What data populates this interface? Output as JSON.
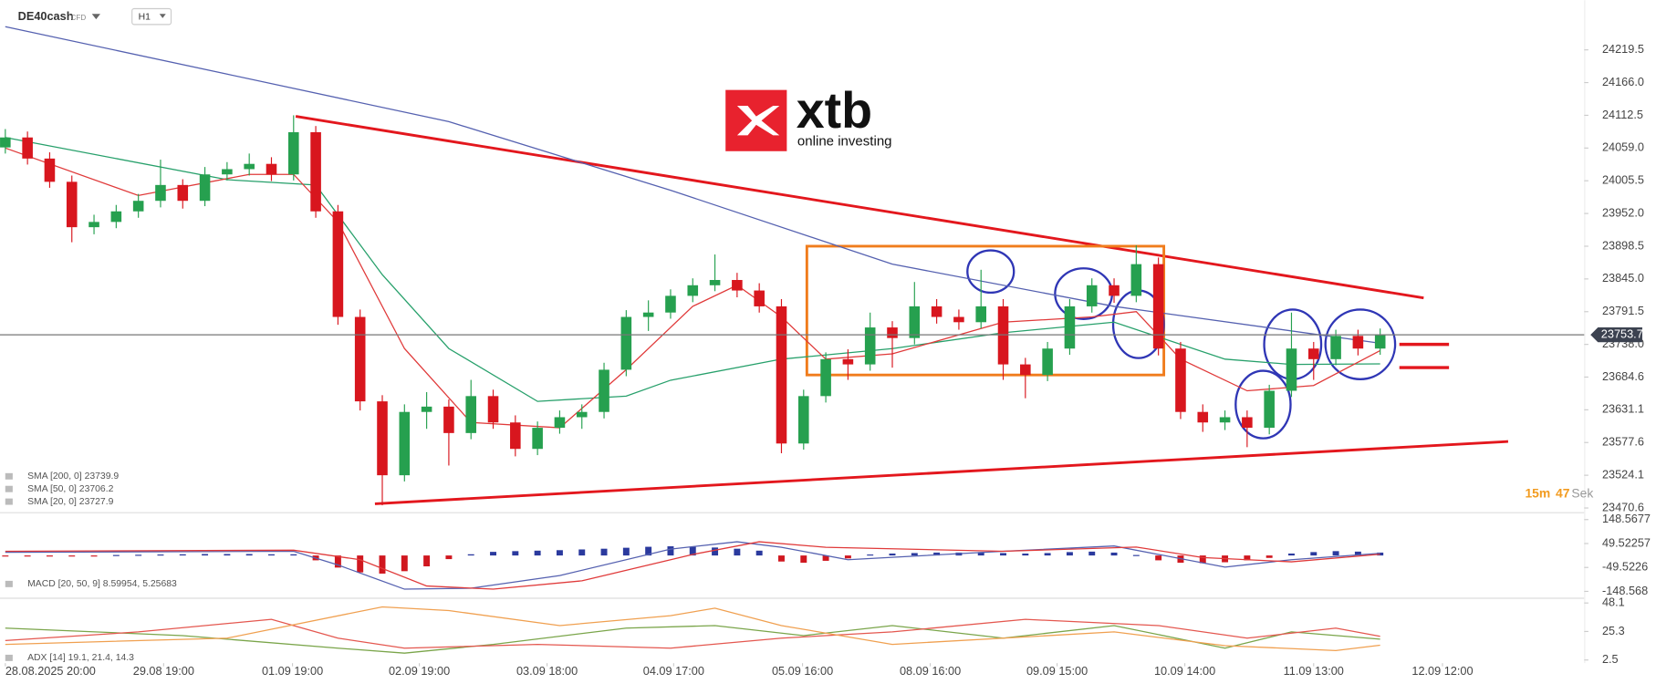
{
  "header": {
    "symbol": "DE40cash",
    "instrument": "CFD",
    "timeframe": "H1"
  },
  "logo": {
    "name": "xtb",
    "tagline": "online investing"
  },
  "timer": {
    "minutes": "15m",
    "seconds": "47",
    "unit": "Sek"
  },
  "chart_data": [
    {
      "type": "candlestick",
      "xlim": [
        -0.24,
        71.2
      ],
      "xticks": [
        {
          "value": 0,
          "label": "28.08.2025  20:00"
        },
        {
          "value": 7.14,
          "label": "29.08  19:00"
        },
        {
          "value": 12.95,
          "label": "01.09  19:00"
        },
        {
          "value": 18.67,
          "label": "02.09  19:00"
        },
        {
          "value": 24.43,
          "label": "03.09  18:00"
        },
        {
          "value": 30.14,
          "label": "04.09  17:00"
        },
        {
          "value": 35.95,
          "label": "05.09  16:00"
        },
        {
          "value": 41.71,
          "label": "08.09  16:00"
        },
        {
          "value": 47.43,
          "label": "09.09  15:00"
        },
        {
          "value": 53.19,
          "label": "10.09  14:00"
        },
        {
          "value": 59,
          "label": "11.09  13:00"
        },
        {
          "value": 64.81,
          "label": "12.09  12:00"
        }
      ],
      "ylim": [
        23470.6,
        24266.1
      ],
      "yticks": [
        24219.5,
        {
          "value": 24166,
          "label": "24166.0"
        },
        24112.5,
        {
          "value": 24059,
          "label": "24059.0"
        },
        24005.5,
        {
          "value": 23952,
          "label": "23952.0"
        },
        23898.5,
        {
          "value": 23845,
          "label": "23845.0"
        },
        23791.5,
        {
          "value": 23738,
          "label": "23738.0"
        },
        23684.6,
        23631.1,
        23577.6,
        23524.1,
        23470.6
      ],
      "up_color": "#26a04f",
      "down_color": "#d8161e",
      "candles": {
        "open": [
          24060,
          24076.3,
          24041.8,
          24003.8,
          23929.6,
          23938.2,
          23955.5,
          23972.7,
          23998.6,
          23972.7,
          24015.9,
          24024.5,
          24033.1,
          24015.9,
          24084.9,
          23955.5,
          23782.9,
          23644.9,
          23524.1,
          23627.6,
          23636.3,
          23593.1,
          23653.5,
          23610.4,
          23567.2,
          23601.7,
          23619.0,
          23627.6,
          23696.6,
          23782.9,
          23790.1,
          23817.4,
          23834.7,
          23843.3,
          23826.1,
          23800.2,
          23576.0,
          23653.5,
          23713.9,
          23705.3,
          23765.7,
          23748.4,
          23800.2,
          23782.9,
          23774.3,
          23800.2,
          23705.3,
          23688.0,
          23731.2,
          23800.2,
          23834.7,
          23817.4,
          23869.2,
          23731.2,
          23627.6,
          23610.4,
          23619.0,
          23601.7,
          23662.2,
          23731.2,
          23713.9,
          23751.9,
          23731.2
        ],
        "high": [
          24090,
          24086,
          24052,
          24014,
          23950,
          23966,
          23984,
          24040,
          24008,
          24028,
          24036,
          24050,
          24044,
          24112.5,
          24095,
          23966,
          23795,
          23655,
          23640,
          23660,
          23648,
          23680,
          23664,
          23622,
          23612,
          23630,
          23640,
          23708,
          23794,
          23810,
          23828,
          23846,
          23885,
          23855,
          23838,
          23812,
          23664,
          23725,
          23730,
          23790,
          23776,
          23840,
          23812,
          23795,
          23860,
          23812,
          23716,
          23742,
          23812,
          23846,
          23846,
          23900,
          23880,
          23742,
          23640,
          23630,
          23630,
          23672,
          23790,
          23742,
          23762,
          23762,
          23764
        ],
        "low": [
          24050,
          24032,
          23994,
          23905,
          23918,
          23928,
          23945,
          23962,
          23960,
          23964,
          24006,
          24014,
          24005,
          24006,
          23945,
          23770,
          23630,
          23475,
          23514,
          23600,
          23540,
          23583,
          23600,
          23555,
          23557,
          23592,
          23600,
          23617,
          23686,
          23760,
          23780,
          23807,
          23825,
          23815,
          23790,
          23560,
          23566,
          23643,
          23680,
          23695,
          23700,
          23738,
          23772,
          23762,
          23764,
          23680,
          23650,
          23678,
          23721,
          23790,
          23806,
          23807,
          23720,
          23616,
          23595,
          23598,
          23570,
          23591,
          23652,
          23680,
          23704,
          23720,
          23721
        ],
        "close": [
          24076.3,
          24041.8,
          24003.8,
          23929.6,
          23938.2,
          23955.5,
          23972.7,
          23998.6,
          23972.7,
          24015.9,
          24024.5,
          24033.1,
          24015.9,
          24084.9,
          23955.5,
          23782.9,
          23644.9,
          23524.1,
          23627.6,
          23636.3,
          23593.1,
          23653.5,
          23610.4,
          23567.2,
          23601.7,
          23619.0,
          23627.6,
          23696.6,
          23782.9,
          23790.1,
          23817.4,
          23834.7,
          23843.3,
          23826.1,
          23800.2,
          23576.0,
          23653.5,
          23713.9,
          23705.3,
          23765.7,
          23748.4,
          23800.2,
          23782.9,
          23774.3,
          23800.2,
          23705.3,
          23688.0,
          23731.2,
          23800.2,
          23834.7,
          23817.4,
          23869.2,
          23731.2,
          23627.6,
          23610.4,
          23619.0,
          23601.7,
          23662.2,
          23731.2,
          23713.9,
          23751.9,
          23731.2,
          23753.7
        ]
      },
      "series": [
        {
          "color": "#5561b0",
          "x": [
            0,
            10,
            20,
            30,
            40,
            50,
            62
          ],
          "values": [
            24257.5,
            24179.8,
            24102.2,
            23990.0,
            23869.2,
            23800.2,
            23739.9
          ]
        },
        {
          "color": "#27a06b",
          "x": [
            0,
            10,
            14,
            17,
            20,
            24,
            28,
            30,
            35,
            40,
            45,
            50,
            55,
            58,
            62
          ],
          "values": [
            24076.3,
            24007.3,
            23998.6,
            23852.0,
            23731.2,
            23644.9,
            23653.5,
            23679.4,
            23713.9,
            23731.2,
            23757.0,
            23774.3,
            23713.9,
            23705.3,
            23706.2
          ]
        },
        {
          "color": "#e03a3a",
          "x": [
            0,
            6,
            11,
            13,
            15,
            18,
            21,
            25,
            28,
            31,
            33,
            35,
            37,
            40,
            45,
            49,
            51,
            53,
            56,
            59,
            62
          ],
          "values": [
            24059.0,
            23981.4,
            24015.9,
            24015.9,
            23938.2,
            23731.2,
            23610.4,
            23601.7,
            23696.6,
            23800.2,
            23834.7,
            23782.9,
            23713.9,
            23722.5,
            23774.3,
            23782.9,
            23791.5,
            23713.9,
            23662.2,
            23670.8,
            23727.9
          ]
        }
      ],
      "legend": [
        "SMA [200, 0]  23739.9",
        "SMA [50, 0]  23706.2",
        "SMA [20, 0]  23727.9"
      ],
      "current_price": 23753.7
    },
    {
      "type": "macd",
      "ylim": [
        -148.568,
        148.5677
      ],
      "yticks": [
        148.5677,
        49.52257,
        -49.5226,
        -148.568
      ],
      "histogram": [
        -3,
        -2,
        -2,
        -3,
        -2,
        2,
        3,
        4,
        5,
        6,
        6,
        6,
        5,
        5,
        -20,
        -50,
        -70,
        -75,
        -65,
        -45,
        -15,
        5,
        15,
        18,
        20,
        22,
        25,
        28,
        32,
        36,
        38,
        36,
        33,
        28,
        20,
        -25,
        -30,
        -22,
        -12,
        4,
        8,
        10,
        12,
        12,
        14,
        10,
        8,
        10,
        14,
        16,
        12,
        2,
        -20,
        -30,
        -32,
        -28,
        -20,
        -10,
        8,
        14,
        18,
        16,
        12
      ],
      "up_color": "#2b3a9e",
      "down_color": "#d0171f",
      "series": [
        {
          "color": "#5561b0",
          "x": [
            0,
            13,
            15,
            18,
            21,
            25,
            30,
            33,
            35,
            38,
            45,
            50,
            52,
            55,
            58,
            62
          ],
          "values": [
            13.2,
            17.6,
            -39.2,
            -139.6,
            -135.3,
            -82.9,
            26.3,
            56.9,
            34.1,
            -17.4,
            17.6,
            39.4,
            4.5,
            -48.1,
            -17.4,
            8.6
          ]
        },
        {
          "color": "#e03a3a",
          "x": [
            0,
            13,
            16,
            19,
            22,
            26,
            31,
            34,
            37,
            45,
            51,
            54,
            58,
            62
          ],
          "values": [
            17.6,
            22.0,
            -17.4,
            -126.5,
            -139.6,
            -104.7,
            4.5,
            56.9,
            34.1,
            17.6,
            35.0,
            -8.6,
            -26.1,
            5.26
          ]
        }
      ],
      "legend": [
        "MACD [20, 50, 9]  8.59954,  5.25683"
      ]
    },
    {
      "type": "adx",
      "ylim": [
        2.5,
        48.1
      ],
      "yticks": [
        48.1,
        25.3,
        2.5
      ],
      "series": [
        {
          "color": "#7aa54a",
          "x": [
            0,
            8,
            15,
            18,
            22,
            28,
            32,
            36,
            40,
            45,
            50,
            55,
            58,
            62
          ],
          "values": [
            28,
            22,
            12,
            8,
            15,
            28,
            30,
            22,
            30,
            20,
            30,
            12,
            25,
            19.1
          ]
        },
        {
          "color": "#e4574f",
          "x": [
            0,
            6,
            12,
            15,
            18,
            24,
            30,
            35,
            40,
            46,
            52,
            56,
            60,
            62
          ],
          "values": [
            18,
            25,
            35,
            20,
            12,
            15,
            12,
            20,
            25,
            35,
            30,
            20,
            28,
            21.4
          ]
        },
        {
          "color": "#f0a050",
          "x": [
            0,
            10,
            17,
            20,
            25,
            30,
            32,
            35,
            40,
            45,
            50,
            55,
            60,
            62
          ],
          "values": [
            15,
            20,
            45,
            42,
            30,
            38,
            44,
            30,
            15,
            20,
            25,
            14,
            10,
            14.3
          ]
        }
      ],
      "legend": [
        "ADX [14]  19.1,  21.4,  14.3"
      ]
    }
  ]
}
